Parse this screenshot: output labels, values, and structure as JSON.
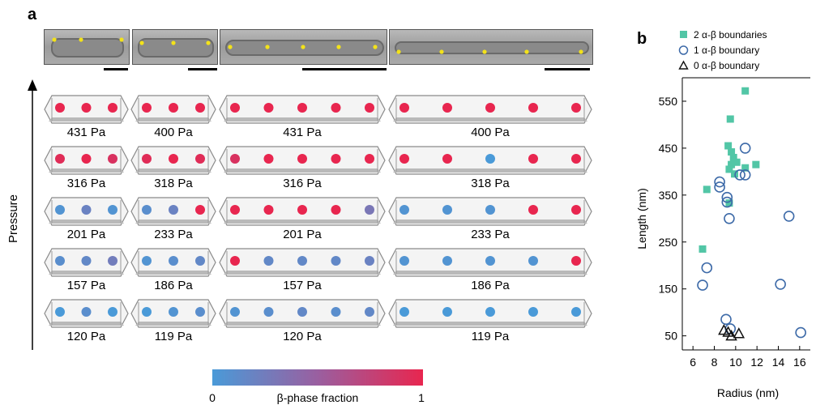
{
  "panel_labels": {
    "a": "a",
    "b": "b"
  },
  "panel_a": {
    "y_axis_label": "Pressure",
    "colorbar": {
      "label": "β-phase fraction",
      "min_label": "0",
      "max_label": "1",
      "color_low": "#4a9ad8",
      "color_high": "#e8264f"
    },
    "rows": [
      {
        "pressures": [
          "431 Pa",
          "400 Pa",
          "431 Pa",
          "400 Pa"
        ],
        "dots": [
          [
            1,
            1,
            1
          ],
          [
            1,
            1,
            1
          ],
          [
            1,
            1,
            1,
            1,
            1
          ],
          [
            1,
            1,
            1,
            1,
            1
          ]
        ]
      },
      {
        "pressures": [
          "316 Pa",
          "318 Pa",
          "316 Pa",
          "318 Pa"
        ],
        "dots": [
          [
            0.95,
            1,
            0.9
          ],
          [
            0.95,
            1,
            0.95
          ],
          [
            0.9,
            1,
            1,
            1,
            1
          ],
          [
            1,
            1,
            0,
            1,
            1
          ]
        ]
      },
      {
        "pressures": [
          "201 Pa",
          "233 Pa",
          "201 Pa",
          "233 Pa"
        ],
        "dots": [
          [
            0.05,
            0.2,
            0.05
          ],
          [
            0.1,
            0.2,
            1
          ],
          [
            1,
            1,
            1,
            1,
            0.3
          ],
          [
            0.05,
            0.05,
            0.05,
            1,
            1
          ]
        ]
      },
      {
        "pressures": [
          "157 Pa",
          "186 Pa",
          "157 Pa",
          "186 Pa"
        ],
        "dots": [
          [
            0.1,
            0.15,
            0.25
          ],
          [
            0.05,
            0.1,
            0.15
          ],
          [
            1,
            0.15,
            0.15,
            0.15,
            0.2
          ],
          [
            0.05,
            0.05,
            0.05,
            0.05,
            1
          ]
        ]
      },
      {
        "pressures": [
          "120 Pa",
          "119 Pa",
          "120 Pa",
          "119 Pa"
        ],
        "dots": [
          [
            0,
            0.1,
            0
          ],
          [
            0,
            0.05,
            0.1
          ],
          [
            0.05,
            0.1,
            0.15,
            0.1,
            0.15
          ],
          [
            0,
            0,
            0,
            0,
            0
          ]
        ]
      }
    ]
  },
  "chart_data": {
    "type": "scatter",
    "xlabel": "Radius (nm)",
    "ylabel": "Length (nm)",
    "xlim": [
      5,
      17
    ],
    "ylim": [
      20,
      600
    ],
    "xticks": [
      6,
      8,
      10,
      12,
      14,
      16
    ],
    "yticks": [
      50,
      150,
      250,
      350,
      450,
      550
    ],
    "legend_position": "top",
    "series": [
      {
        "name": "2 α-β boundaries",
        "marker": "square",
        "color": "#52c6a6",
        "points": [
          [
            10.9,
            572
          ],
          [
            9.5,
            512
          ],
          [
            9.3,
            455
          ],
          [
            9.6,
            442
          ],
          [
            9.8,
            430
          ],
          [
            9.6,
            415
          ],
          [
            10.1,
            420
          ],
          [
            9.4,
            405
          ],
          [
            9.9,
            395
          ],
          [
            10.9,
            408
          ],
          [
            11.9,
            415
          ],
          [
            7.3,
            362
          ],
          [
            9.4,
            333
          ],
          [
            6.9,
            235
          ]
        ]
      },
      {
        "name": "1 α-β boundary",
        "marker": "circle",
        "color": "#3d6aa8",
        "points": [
          [
            10.9,
            450
          ],
          [
            10.4,
            393
          ],
          [
            10.9,
            393
          ],
          [
            8.5,
            378
          ],
          [
            8.5,
            367
          ],
          [
            9.2,
            345
          ],
          [
            9.2,
            335
          ],
          [
            9.4,
            300
          ],
          [
            15.0,
            305
          ],
          [
            7.3,
            195
          ],
          [
            6.9,
            158
          ],
          [
            14.2,
            160
          ],
          [
            9.1,
            85
          ],
          [
            9.5,
            65
          ],
          [
            16.1,
            57
          ]
        ]
      },
      {
        "name": "0 α-β boundary",
        "marker": "triangle",
        "color": "#111111",
        "points": [
          [
            8.9,
            62
          ],
          [
            9.3,
            58
          ],
          [
            9.6,
            50
          ],
          [
            10.3,
            55
          ]
        ]
      }
    ]
  }
}
